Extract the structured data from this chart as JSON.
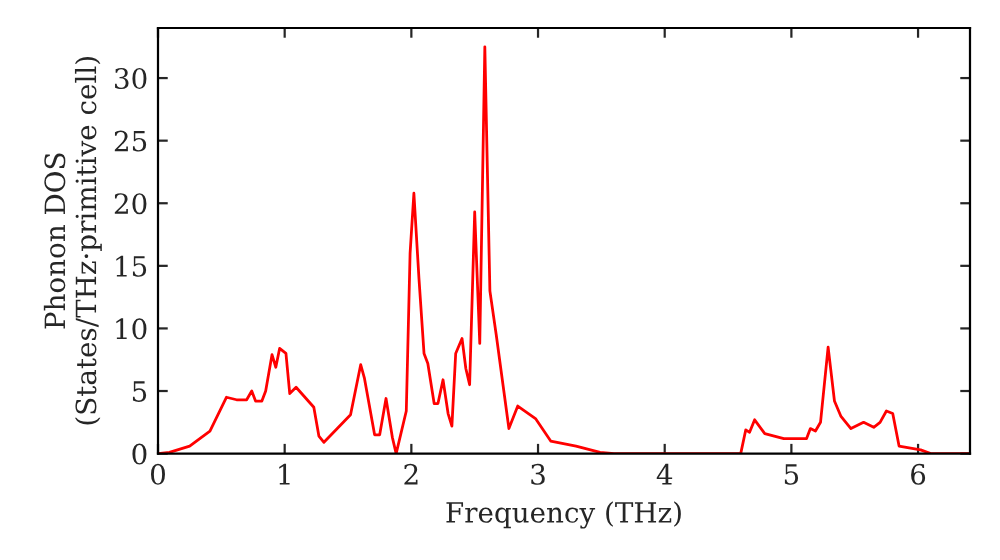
{
  "chart_data": {
    "type": "line",
    "xlabel": "Frequency (THz)",
    "ylabel": "Phonon DOS\n(States/THz·primitive cell)",
    "xlim": [
      0,
      6.41
    ],
    "ylim": [
      0,
      34
    ],
    "xticks": [
      0,
      1,
      2,
      3,
      4,
      5,
      6
    ],
    "yticks": [
      0,
      5,
      10,
      15,
      20,
      25,
      30
    ],
    "grid": false,
    "legend": false,
    "series": [
      {
        "color": "#ff0000",
        "x": [
          0,
          0.09,
          0.25,
          0.41,
          0.54,
          0.62,
          0.7,
          0.74,
          0.77,
          0.82,
          0.85,
          0.9,
          0.93,
          0.96,
          1.01,
          1.04,
          1.09,
          1.23,
          1.27,
          1.31,
          1.52,
          1.6,
          1.63,
          1.71,
          1.75,
          1.8,
          1.85,
          1.88,
          1.96,
          1.99,
          2.02,
          2.06,
          2.1,
          2.13,
          2.18,
          2.21,
          2.25,
          2.29,
          2.32,
          2.35,
          2.4,
          2.43,
          2.46,
          2.5,
          2.54,
          2.58,
          2.62,
          2.67,
          2.73,
          2.77,
          2.84,
          2.98,
          3.1,
          3.25,
          3.3,
          3.49,
          3.6,
          4.6,
          4.64,
          4.67,
          4.71,
          4.79,
          4.94,
          5.12,
          5.15,
          5.19,
          5.23,
          5.29,
          5.34,
          5.39,
          5.47,
          5.57,
          5.65,
          5.7,
          5.75,
          5.8,
          5.85,
          6.02,
          6.1,
          6.4
        ],
        "values": [
          0,
          0.1,
          0.6,
          1.8,
          4.5,
          4.3,
          4.3,
          5.0,
          4.2,
          4.2,
          5.0,
          7.9,
          6.9,
          8.4,
          8.0,
          4.8,
          5.3,
          3.7,
          1.4,
          0.9,
          3.1,
          7.1,
          6.0,
          1.5,
          1.5,
          4.4,
          1.3,
          0,
          3.4,
          16,
          20.8,
          14,
          8,
          7.2,
          4,
          4,
          5.9,
          3.2,
          2.2,
          8,
          9.2,
          6.8,
          5.5,
          19.3,
          8.8,
          32.5,
          13,
          9.5,
          5,
          2,
          3.8,
          2.8,
          1,
          0.7,
          0.6,
          0.1,
          0,
          0,
          1.9,
          1.7,
          2.7,
          1.6,
          1.2,
          1.2,
          2,
          1.8,
          2.5,
          8.5,
          4.2,
          3,
          2,
          2.5,
          2.1,
          2.5,
          3.4,
          3.2,
          0.6,
          0.3,
          0,
          0
        ]
      }
    ]
  }
}
